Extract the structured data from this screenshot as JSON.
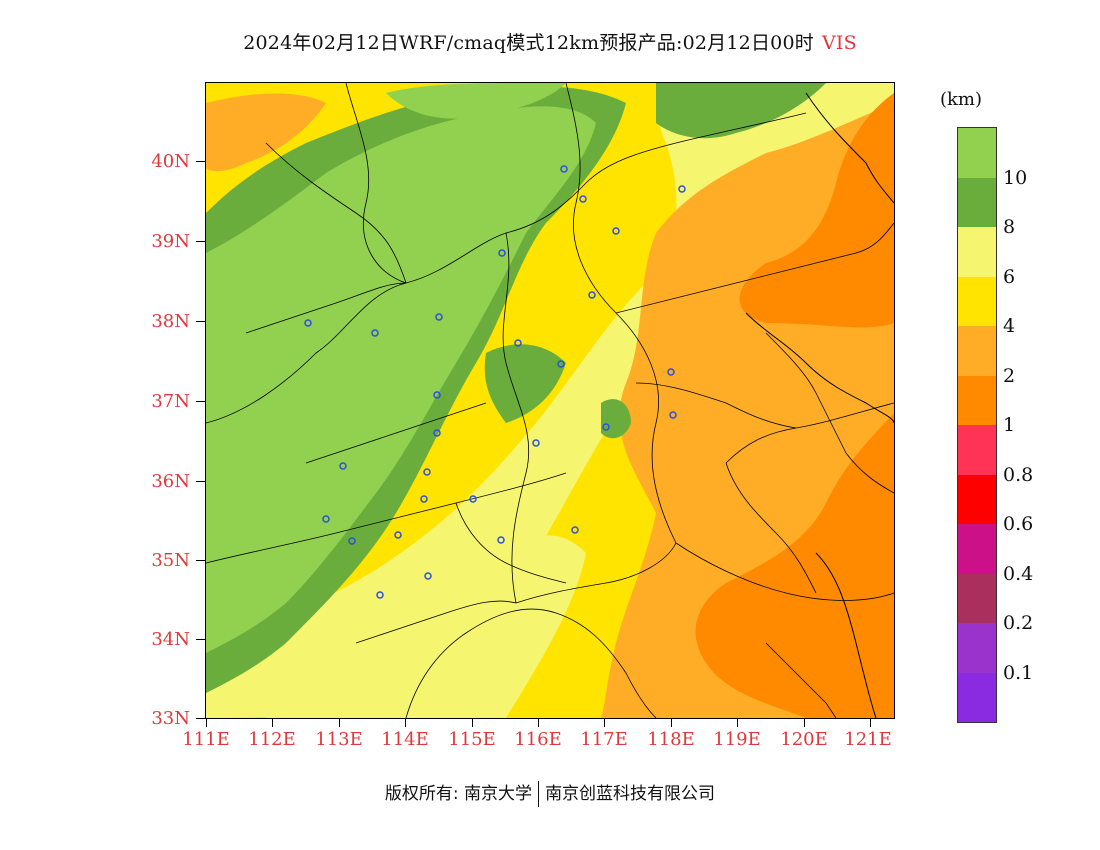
{
  "title": {
    "main": "2024年02月12日WRF/cmaq模式12km预报产品:02月12日00时",
    "variable": "VIS"
  },
  "map": {
    "lat_labels": [
      "40N",
      "39N",
      "38N",
      "37N",
      "36N",
      "35N",
      "34N",
      "33N"
    ],
    "lon_labels": [
      "111E",
      "112E",
      "113E",
      "114E",
      "115E",
      "116E",
      "117E",
      "118E",
      "119E",
      "120E",
      "121E"
    ],
    "colors": {
      "above_10": "#92d050",
      "8_10": "#6aad3c",
      "6_8": "#f5f570",
      "4_6": "#ffe400",
      "2_4": "#ffad26",
      "1_2": "#ff8a00",
      "station": "#2b4fe0",
      "border": "#000000"
    }
  },
  "legend": {
    "unit": "(km)",
    "ticks": [
      "10",
      "8",
      "6",
      "4",
      "2",
      "1",
      "0.8",
      "0.6",
      "0.4",
      "0.2",
      "0.1"
    ],
    "colors": [
      "#92d050",
      "#6aad3c",
      "#f5f570",
      "#ffe400",
      "#ffad26",
      "#ff8a00",
      "#ff3355",
      "#ff0000",
      "#cc1188",
      "#aa2f5c",
      "#9933cc",
      "#8a2be2"
    ]
  },
  "footer": {
    "copyright": "版权所有: 南京大学",
    "company": "南京创蓝科技有限公司"
  }
}
